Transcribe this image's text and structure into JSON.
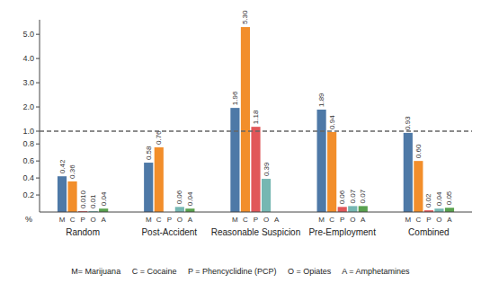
{
  "chart_data": [
    {
      "type": "bar",
      "categories": [
        null,
        null,
        null,
        null,
        null
      ],
      "series": [
        {
          "values": [
            null,
            null,
            1.96,
            1.89,
            null
          ],
          "value_labels": [
            null,
            null,
            "1.96",
            "1.89",
            null
          ]
        },
        {
          "values": [
            null,
            null,
            5.3,
            null,
            null
          ],
          "value_labels": [
            null,
            null,
            "5.30",
            null,
            null
          ]
        },
        {
          "values": [
            null,
            null,
            1.18,
            null,
            null
          ],
          "value_labels": [
            null,
            null,
            "1.18",
            null,
            null
          ]
        },
        {
          "values": [
            null,
            null,
            null,
            null,
            null
          ],
          "value_labels": [
            null,
            null,
            null,
            null,
            null
          ]
        },
        {
          "values": [
            null,
            null,
            null,
            null,
            null
          ],
          "value_labels": [
            null,
            null,
            null,
            null,
            null
          ]
        }
      ],
      "ylim": [
        1.0,
        5.6
      ],
      "yticks": [
        {
          "value": 1.0,
          "label": "1.0"
        },
        {
          "value": 2.0,
          "label": "2.0"
        },
        {
          "value": 3.0,
          "label": "3.0"
        },
        {
          "value": 4.0,
          "label": "4.0"
        },
        {
          "value": 5.0,
          "label": "5.0"
        }
      ],
      "data_labels": true,
      "tick_labels": "y"
    },
    {
      "type": "bar",
      "categories": [
        "Random",
        "Post-Accident",
        "Reasonable Suspicion",
        "Pre-Employment",
        "Combined"
      ],
      "series": [
        {
          "name": "M",
          "values": [
            0.42,
            0.58,
            null,
            null,
            0.93
          ],
          "value_labels": [
            "0.42",
            "0.58",
            null,
            null,
            "0.93"
          ]
        },
        {
          "name": "C",
          "values": [
            0.36,
            0.76,
            null,
            0.94,
            0.6
          ],
          "value_labels": [
            "0.36",
            "0.76",
            null,
            "0.94",
            "0.60"
          ]
        },
        {
          "name": "P",
          "values": [
            0.01,
            0,
            null,
            0.06,
            0.02
          ],
          "value_labels": [
            "0.010",
            null,
            null,
            "0.06",
            "0.02"
          ]
        },
        {
          "name": "O",
          "values": [
            0.01,
            0.06,
            0.39,
            0.07,
            0.04
          ],
          "value_labels": [
            "0.01",
            "0.06",
            "0.39",
            "0.07",
            "0.04"
          ]
        },
        {
          "name": "A",
          "values": [
            0.04,
            0.04,
            0,
            0.07,
            0.05
          ],
          "value_labels": [
            "0.04",
            "0.04",
            null,
            "0.07",
            "0.05"
          ]
        }
      ],
      "ylim": [
        0,
        0.95
      ],
      "yticks": [
        0.2,
        0.4,
        0.6,
        0.8
      ],
      "y_label": "%",
      "annotations": [
        "M= Marijuana     C = Cocaine     P = Phencyclidine (PCP)     O = Opiates     A = Amphetamines"
      ],
      "data_labels": true
    }
  ]
}
